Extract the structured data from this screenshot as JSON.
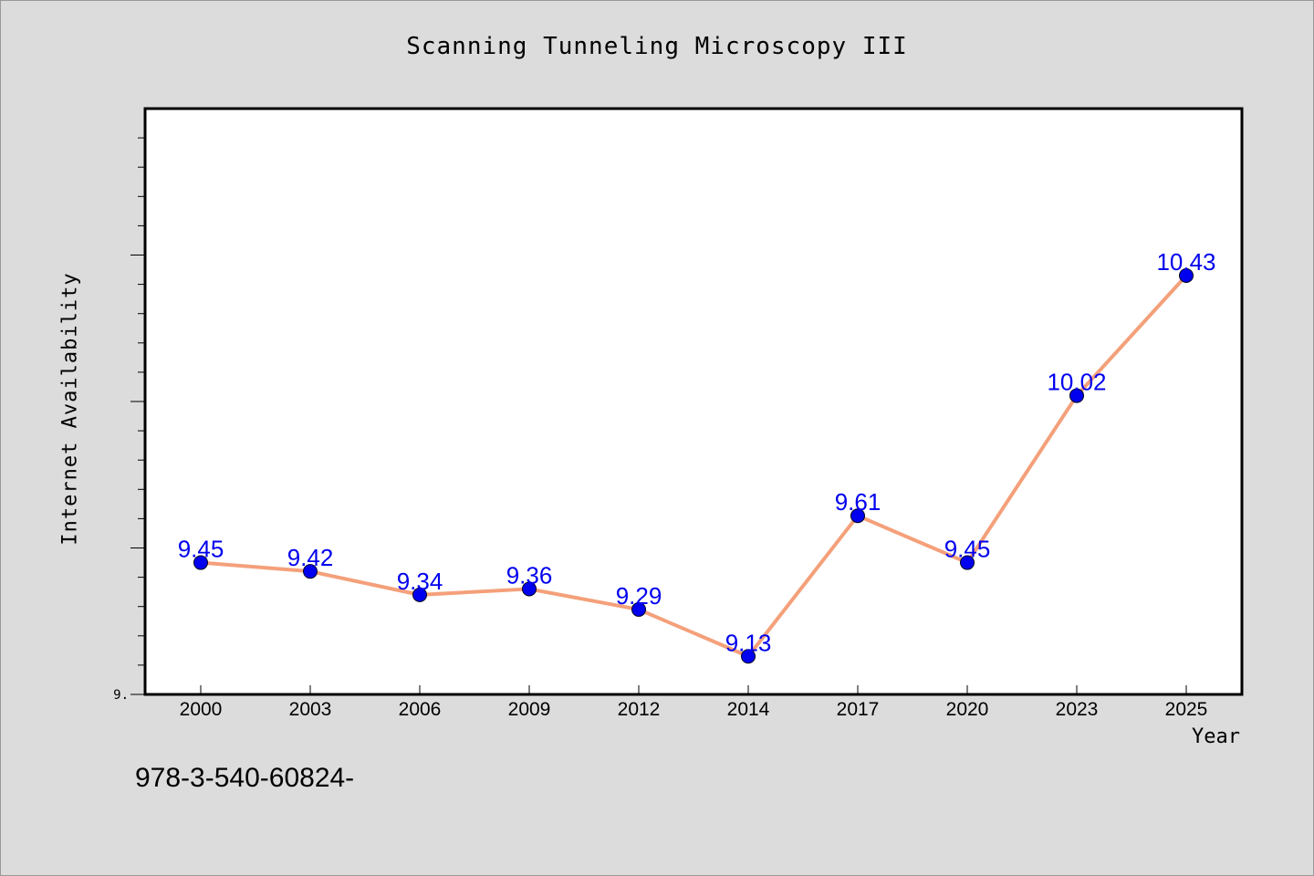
{
  "chart_data": {
    "type": "line",
    "title": "Scanning Tunneling Microscopy III",
    "xlabel": "Year",
    "ylabel": "Internet Availability",
    "categories": [
      "2000",
      "2003",
      "2006",
      "2009",
      "2012",
      "2014",
      "2017",
      "2020",
      "2023",
      "2025"
    ],
    "series": [
      {
        "values": [
          9.45,
          9.42,
          9.34,
          9.36,
          9.29,
          9.13,
          9.61,
          9.45,
          10.02,
          10.43
        ],
        "labels": [
          "9.45",
          "9.42",
          "9.34",
          "9.36",
          "9.29",
          "9.13",
          "9.61",
          "9.45",
          "10.02",
          "10.43"
        ],
        "line_color": "#f4a07a",
        "marker_color": "#0000ee",
        "label_color": "#0000ee"
      }
    ],
    "ylim": [
      9.0,
      11.0
    ],
    "ytick_labels": [
      {
        "value": 9.0,
        "label": "9."
      }
    ],
    "grid": false,
    "legend": "none"
  },
  "footer_text": "978-3-540-60824-"
}
